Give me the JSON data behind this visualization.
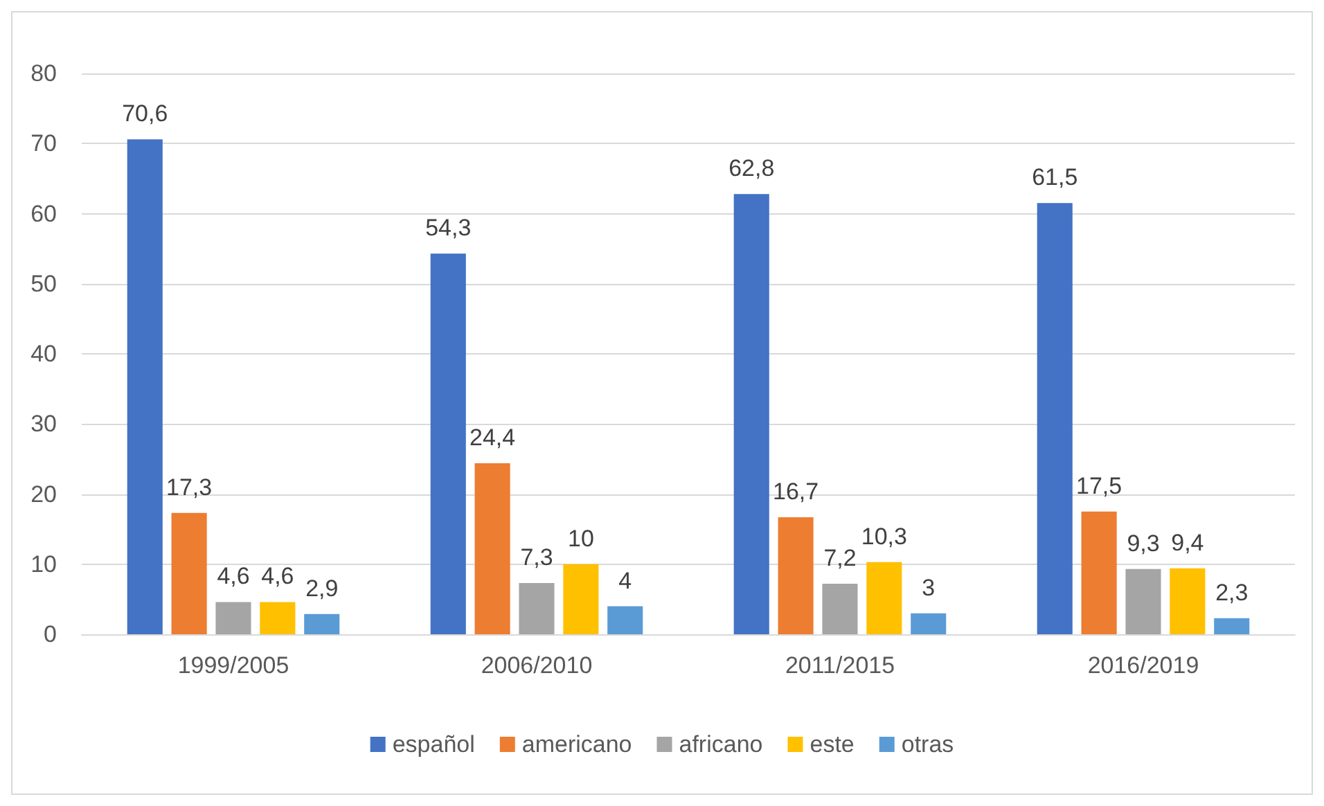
{
  "chart_data": {
    "type": "bar",
    "categories": [
      "1999/2005",
      "2006/2010",
      "2011/2015",
      "2016/2019"
    ],
    "series": [
      {
        "name": "español",
        "color": "#4472c4",
        "values": [
          70.6,
          54.3,
          62.8,
          61.5
        ],
        "value_labels": [
          "70,6",
          "54,3",
          "62,8",
          "61,5"
        ]
      },
      {
        "name": "americano",
        "color": "#ed7d31",
        "values": [
          17.3,
          24.4,
          16.7,
          17.5
        ],
        "value_labels": [
          "17,3",
          "24,4",
          "16,7",
          "17,5"
        ]
      },
      {
        "name": "africano",
        "color": "#a5a5a5",
        "values": [
          4.6,
          7.3,
          7.2,
          9.3
        ],
        "value_labels": [
          "4,6",
          "7,3",
          "7,2",
          "9,3"
        ]
      },
      {
        "name": "este",
        "color": "#ffc000",
        "values": [
          4.6,
          10,
          10.3,
          9.4
        ],
        "value_labels": [
          "4,6",
          "10",
          "10,3",
          "9,4"
        ]
      },
      {
        "name": "otras",
        "color": "#5b9bd5",
        "values": [
          2.9,
          4,
          3,
          2.3
        ],
        "value_labels": [
          "2,9",
          "4",
          "3",
          "2,3"
        ]
      }
    ],
    "ylim": [
      0,
      80
    ],
    "yticks": [
      0,
      10,
      20,
      30,
      40,
      50,
      60,
      70,
      80
    ],
    "grid": "y",
    "legend": "bottom"
  }
}
